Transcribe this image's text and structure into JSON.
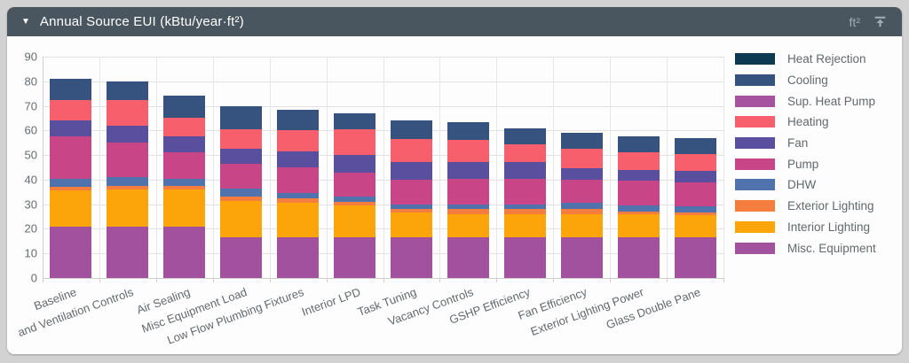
{
  "header": {
    "collapse_icon": "▼",
    "title": "Annual Source EUI (kBtu/year·ft²)",
    "unit_label": "ft²",
    "icon_color": "#9fadb7"
  },
  "chart_data": {
    "type": "bar",
    "stacked": true,
    "title": "Annual Source EUI (kBtu/year·ft²)",
    "xlabel": "",
    "ylabel": "",
    "ylim": [
      0,
      90
    ],
    "ytick_interval": 10,
    "grid": true,
    "legend_position": "right",
    "categories": [
      "Baseline",
      "and Ventilation Controls",
      "Air Sealing",
      "Misc Equipment Load",
      "Low Flow Plumbing Fixtures",
      "Interior LPD",
      "Task Tuning",
      "Vacancy Controls",
      "GSHP Efficiency",
      "Fan Efficiency",
      "Exterior Lighting Power",
      "Glass Double Pane"
    ],
    "series": [
      {
        "name": "Heat Rejection",
        "color": "#0d3a52",
        "values": [
          0,
          0,
          0,
          0,
          0,
          0,
          0,
          0,
          0,
          0,
          0,
          0
        ]
      },
      {
        "name": "Cooling",
        "color": "#35537e",
        "values": [
          8.5,
          7.5,
          9,
          9.5,
          8.5,
          6.5,
          7.5,
          7.5,
          6.5,
          6.5,
          6.5,
          6.5
        ]
      },
      {
        "name": "Sup. Heat Pump",
        "color": "#a6529f",
        "values": [
          0,
          0,
          0,
          0,
          0,
          0,
          0,
          0,
          0,
          0,
          0,
          0
        ]
      },
      {
        "name": "Heating",
        "color": "#f85f6d",
        "values": [
          8.5,
          10.5,
          7.5,
          8,
          8.5,
          10.5,
          9.5,
          9,
          7.5,
          8,
          7,
          7
        ]
      },
      {
        "name": "Fan",
        "color": "#5a4e9e",
        "values": [
          6.5,
          7,
          6.5,
          6,
          6.5,
          7,
          7,
          6.5,
          6.5,
          4.5,
          4.5,
          4.5
        ]
      },
      {
        "name": "Pump",
        "color": "#c84687",
        "values": [
          17,
          14,
          10.5,
          10,
          10.5,
          10,
          10,
          10.5,
          10.5,
          9.5,
          10,
          10
        ]
      },
      {
        "name": "DHW",
        "color": "#5173ad",
        "values": [
          3.5,
          3.5,
          3,
          3.5,
          2,
          2,
          2,
          2,
          2,
          2.5,
          2.5,
          2.5
        ]
      },
      {
        "name": "Exterior Lighting",
        "color": "#f57d3d",
        "values": [
          1.5,
          1.5,
          1.5,
          1.5,
          2,
          1.5,
          1.5,
          2,
          2,
          2,
          1,
          1
        ]
      },
      {
        "name": "Interior Lighting",
        "color": "#fba50a",
        "values": [
          14.5,
          15,
          15,
          15,
          14,
          13,
          10,
          9.5,
          9.5,
          9.5,
          9.5,
          9
        ]
      },
      {
        "name": "Misc. Equipment",
        "color": "#a1519e",
        "values": [
          21,
          21,
          21,
          16.5,
          16.5,
          16.5,
          16.5,
          16.5,
          16.5,
          16.5,
          16.5,
          16.5
        ]
      }
    ],
    "totals": [
      81,
      80,
      74,
      70,
      68.5,
      67,
      64,
      63.5,
      61,
      59,
      57.5,
      57
    ],
    "stack_order_note": "bars stack bottom-to-top in reverse of series (legend) order"
  }
}
